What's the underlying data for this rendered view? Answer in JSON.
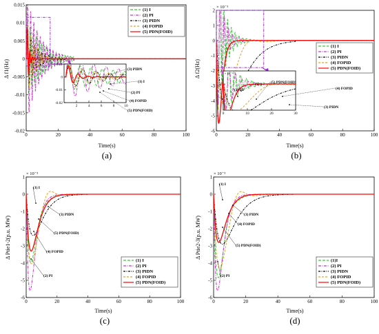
{
  "chart_data": [
    {
      "type": "line",
      "panel_label": "(a)",
      "xlabel": "Time(s)",
      "ylabel": "Δ f1(Hz)",
      "xlim": [
        0,
        100
      ],
      "ylim": [
        -0.02,
        0.015
      ],
      "x_ticks": [
        "0",
        "20",
        "40",
        "60",
        "80",
        "100"
      ],
      "y_ticks": [
        "0.015",
        "0.01",
        "0.005",
        "0",
        "-0.005",
        "-0.01",
        "-0.015",
        "-0.02"
      ],
      "legend": [
        "(1) I",
        "(2) PI",
        "(3) PIDN",
        "(4) FOPID",
        "(5) PDN(FOID)"
      ],
      "legend_position": "top-right",
      "series": [
        {
          "name": "(1) I",
          "color": "#33cc33",
          "dash": "4,2",
          "type": "osc",
          "amp": 0.011,
          "decay": 10,
          "period": 1.8,
          "x0": 0.3,
          "end": 30
        },
        {
          "name": "(2) PI",
          "color": "#cc33cc",
          "dash": "4,1.5,1,1.5",
          "type": "osc",
          "amp": 0.018,
          "decay": 8,
          "period": 2.0,
          "x0": 0.3,
          "end": 30
        },
        {
          "name": "(3) PIDN",
          "color": "#000000",
          "dash": "3,1.5,1,1.5",
          "type": "osc",
          "amp": 0.009,
          "decay": 6,
          "period": 2.2,
          "x0": 0.3,
          "end": 25
        },
        {
          "name": "(4) FOPID",
          "color": "#e6a020",
          "dash": "3,2",
          "type": "osc",
          "amp": 0.011,
          "decay": 5,
          "period": 2.1,
          "x0": 0.3,
          "end": 25
        },
        {
          "name": "(5) PDN(FOID)",
          "color": "#ff0000",
          "dash": "",
          "type": "osc",
          "amp": 0.012,
          "decay": 1.2,
          "period": 1.6,
          "x0": 0.3,
          "end": 15
        }
      ],
      "inset": {
        "xlim": [
          0,
          10
        ],
        "ylim": [
          -0.02,
          0.01
        ],
        "x_ticks": [
          "2",
          "4",
          "6",
          "8",
          "10"
        ],
        "y_ticks": [
          "0.01",
          "0",
          "-0.01",
          "-0.02"
        ],
        "annotations": [
          "(3) PIDN",
          "(1) I",
          "(2) PI",
          "(4) FOPID",
          "(5) PDN(FOID)"
        ]
      }
    },
    {
      "type": "line",
      "panel_label": "(b)",
      "xlabel": "Time(s)",
      "ylabel": "Δ f2(Hz)",
      "y_multiplier": "× 10⁻³",
      "xlim": [
        0,
        100
      ],
      "ylim": [
        -6,
        2
      ],
      "x_ticks": [
        "0",
        "20",
        "40",
        "60",
        "80",
        "100"
      ],
      "y_ticks": [
        "2",
        "1",
        "0",
        "-1",
        "-2",
        "-3",
        "-4",
        "-5",
        "-6"
      ],
      "legend": [
        "(1) I",
        "(2) PI",
        "(3) PIDN",
        "(4) FOPID",
        "(5) PDN(FOID)"
      ],
      "legend_position": "right",
      "series": [
        {
          "name": "(1) I",
          "color": "#33cc33",
          "dash": "4,2",
          "type": "osc",
          "amp": -5.2,
          "decay": 5,
          "period": 2.4,
          "x0": 0.5,
          "end": 30
        },
        {
          "name": "(2) PI",
          "color": "#cc33cc",
          "dash": "4,1.5,1,1.5",
          "type": "osc",
          "amp": -5.0,
          "decay": 4,
          "period": 2.6,
          "x0": 0.5,
          "end": 30
        },
        {
          "name": "(3) PIDN",
          "color": "#000000",
          "dash": "3,1.5,1,1.5",
          "type": "dip",
          "depth": -4.6,
          "tau": 7,
          "end": 50
        },
        {
          "name": "(4) FOPID",
          "color": "#e6a020",
          "dash": "3,2",
          "type": "dipov",
          "depth": -4.3,
          "tau": 5,
          "over": 0.8,
          "tc": 18,
          "end": 50
        },
        {
          "name": "(5) PDN(FOID)",
          "color": "#ff0000",
          "dash": "",
          "type": "dip",
          "depth": -5.5,
          "tau": 1.5,
          "end": 15
        }
      ],
      "inset": {
        "xlim": [
          0,
          30
        ],
        "ylim": [
          -4,
          2
        ],
        "x_ticks": [
          "0",
          "10",
          "20",
          "30"
        ],
        "y_ticks": [
          "2",
          "0",
          "-2"
        ],
        "y_multiplier": "× 10⁻³",
        "annotations": [
          "(1) I",
          "(2) PI",
          "(5) PDN(FOID)",
          "(4) FOPID",
          "(3) PIDN"
        ]
      }
    },
    {
      "type": "line",
      "panel_label": "(c)",
      "xlabel": "Time(s)",
      "ylabel": "Δ Ptie1-2(p.u. MW)",
      "y_multiplier": "× 10⁻³",
      "xlim": [
        0,
        100
      ],
      "ylim": [
        -6,
        1
      ],
      "x_ticks": [
        "0",
        "20",
        "40",
        "60",
        "80",
        "100"
      ],
      "y_ticks": [
        "1",
        "0",
        "-1",
        "-2",
        "-3",
        "-4",
        "-5",
        "-6"
      ],
      "legend": [
        "(1) I",
        "(2) PI",
        "(3) PIDN",
        "(4) FOPID",
        "(5) PDN(FOID)"
      ],
      "legend_position": "bottom-right",
      "annotations": [
        "(1) I",
        "(3) PIDN",
        "(5) PDN(FOID)",
        "(4) FOPID",
        "(2) PI"
      ],
      "series": [
        {
          "name": "(1) I",
          "color": "#33cc33",
          "dash": "4,2",
          "type": "dipov",
          "depth": -4.0,
          "tau": 3,
          "over": 0.25,
          "tc": 9,
          "end": 40
        },
        {
          "name": "(2) PI",
          "color": "#cc33cc",
          "dash": "4,1.5,1,1.5",
          "type": "dip",
          "depth": -5.6,
          "tau": 2.5,
          "end": 40
        },
        {
          "name": "(3) PIDN",
          "color": "#000000",
          "dash": "3,1.5,1,1.5",
          "type": "dip",
          "depth": -2.4,
          "tau": 4.5,
          "end": 40
        },
        {
          "name": "(4) FOPID",
          "color": "#e6a020",
          "dash": "3,2",
          "type": "dipov",
          "depth": -4.1,
          "tau": 3.5,
          "over": 0.9,
          "tc": 13,
          "end": 45
        },
        {
          "name": "(5) PDN(FOID)",
          "color": "#ff0000",
          "dash": "",
          "type": "dip",
          "depth": -3.3,
          "tau": 3.2,
          "end": 40
        }
      ]
    },
    {
      "type": "line",
      "panel_label": "(d)",
      "xlabel": "Time(s)",
      "ylabel": "Δ Ptie2-3(p.u. MW)",
      "y_multiplier": "× 10⁻³",
      "xlim": [
        0,
        100
      ],
      "ylim": [
        -6,
        1
      ],
      "x_ticks": [
        "0",
        "20",
        "40",
        "60",
        "80",
        "100"
      ],
      "y_ticks": [
        "1",
        "0",
        "-1",
        "-2",
        "-3",
        "-4",
        "-5",
        "-6"
      ],
      "legend": [
        "(1)I",
        "(2) PI",
        "(3) PIDN",
        "(4) FOPID",
        "(5) PDN(FOID)"
      ],
      "legend_position": "bottom-right",
      "annotations": [
        "(1) I",
        "(3) PIDN",
        "(4) FOPID",
        "(5) PDN(FOID)",
        "(2) PI"
      ],
      "series": [
        {
          "name": "(1)I",
          "color": "#33cc33",
          "dash": "4,2",
          "type": "dipov",
          "depth": -4.9,
          "tau": 3,
          "over": 0.5,
          "tc": 9,
          "end": 40
        },
        {
          "name": "(2) PI",
          "color": "#cc33cc",
          "dash": "4,1.5,1,1.5",
          "type": "dip",
          "depth": -5.6,
          "tau": 2.5,
          "end": 40
        },
        {
          "name": "(3) PIDN",
          "color": "#000000",
          "dash": "3,1.5,1,1.5",
          "type": "dip",
          "depth": -2.9,
          "tau": 5.5,
          "end": 50
        },
        {
          "name": "(4) FOPID",
          "color": "#e6a020",
          "dash": "3,2",
          "type": "dipov",
          "depth": -4.4,
          "tau": 4,
          "over": 1.1,
          "tc": 14,
          "end": 50
        },
        {
          "name": "(5) PDN(FOID)",
          "color": "#ff0000",
          "dash": "",
          "type": "dip",
          "depth": -2.8,
          "tau": 3.2,
          "end": 40
        }
      ]
    }
  ]
}
